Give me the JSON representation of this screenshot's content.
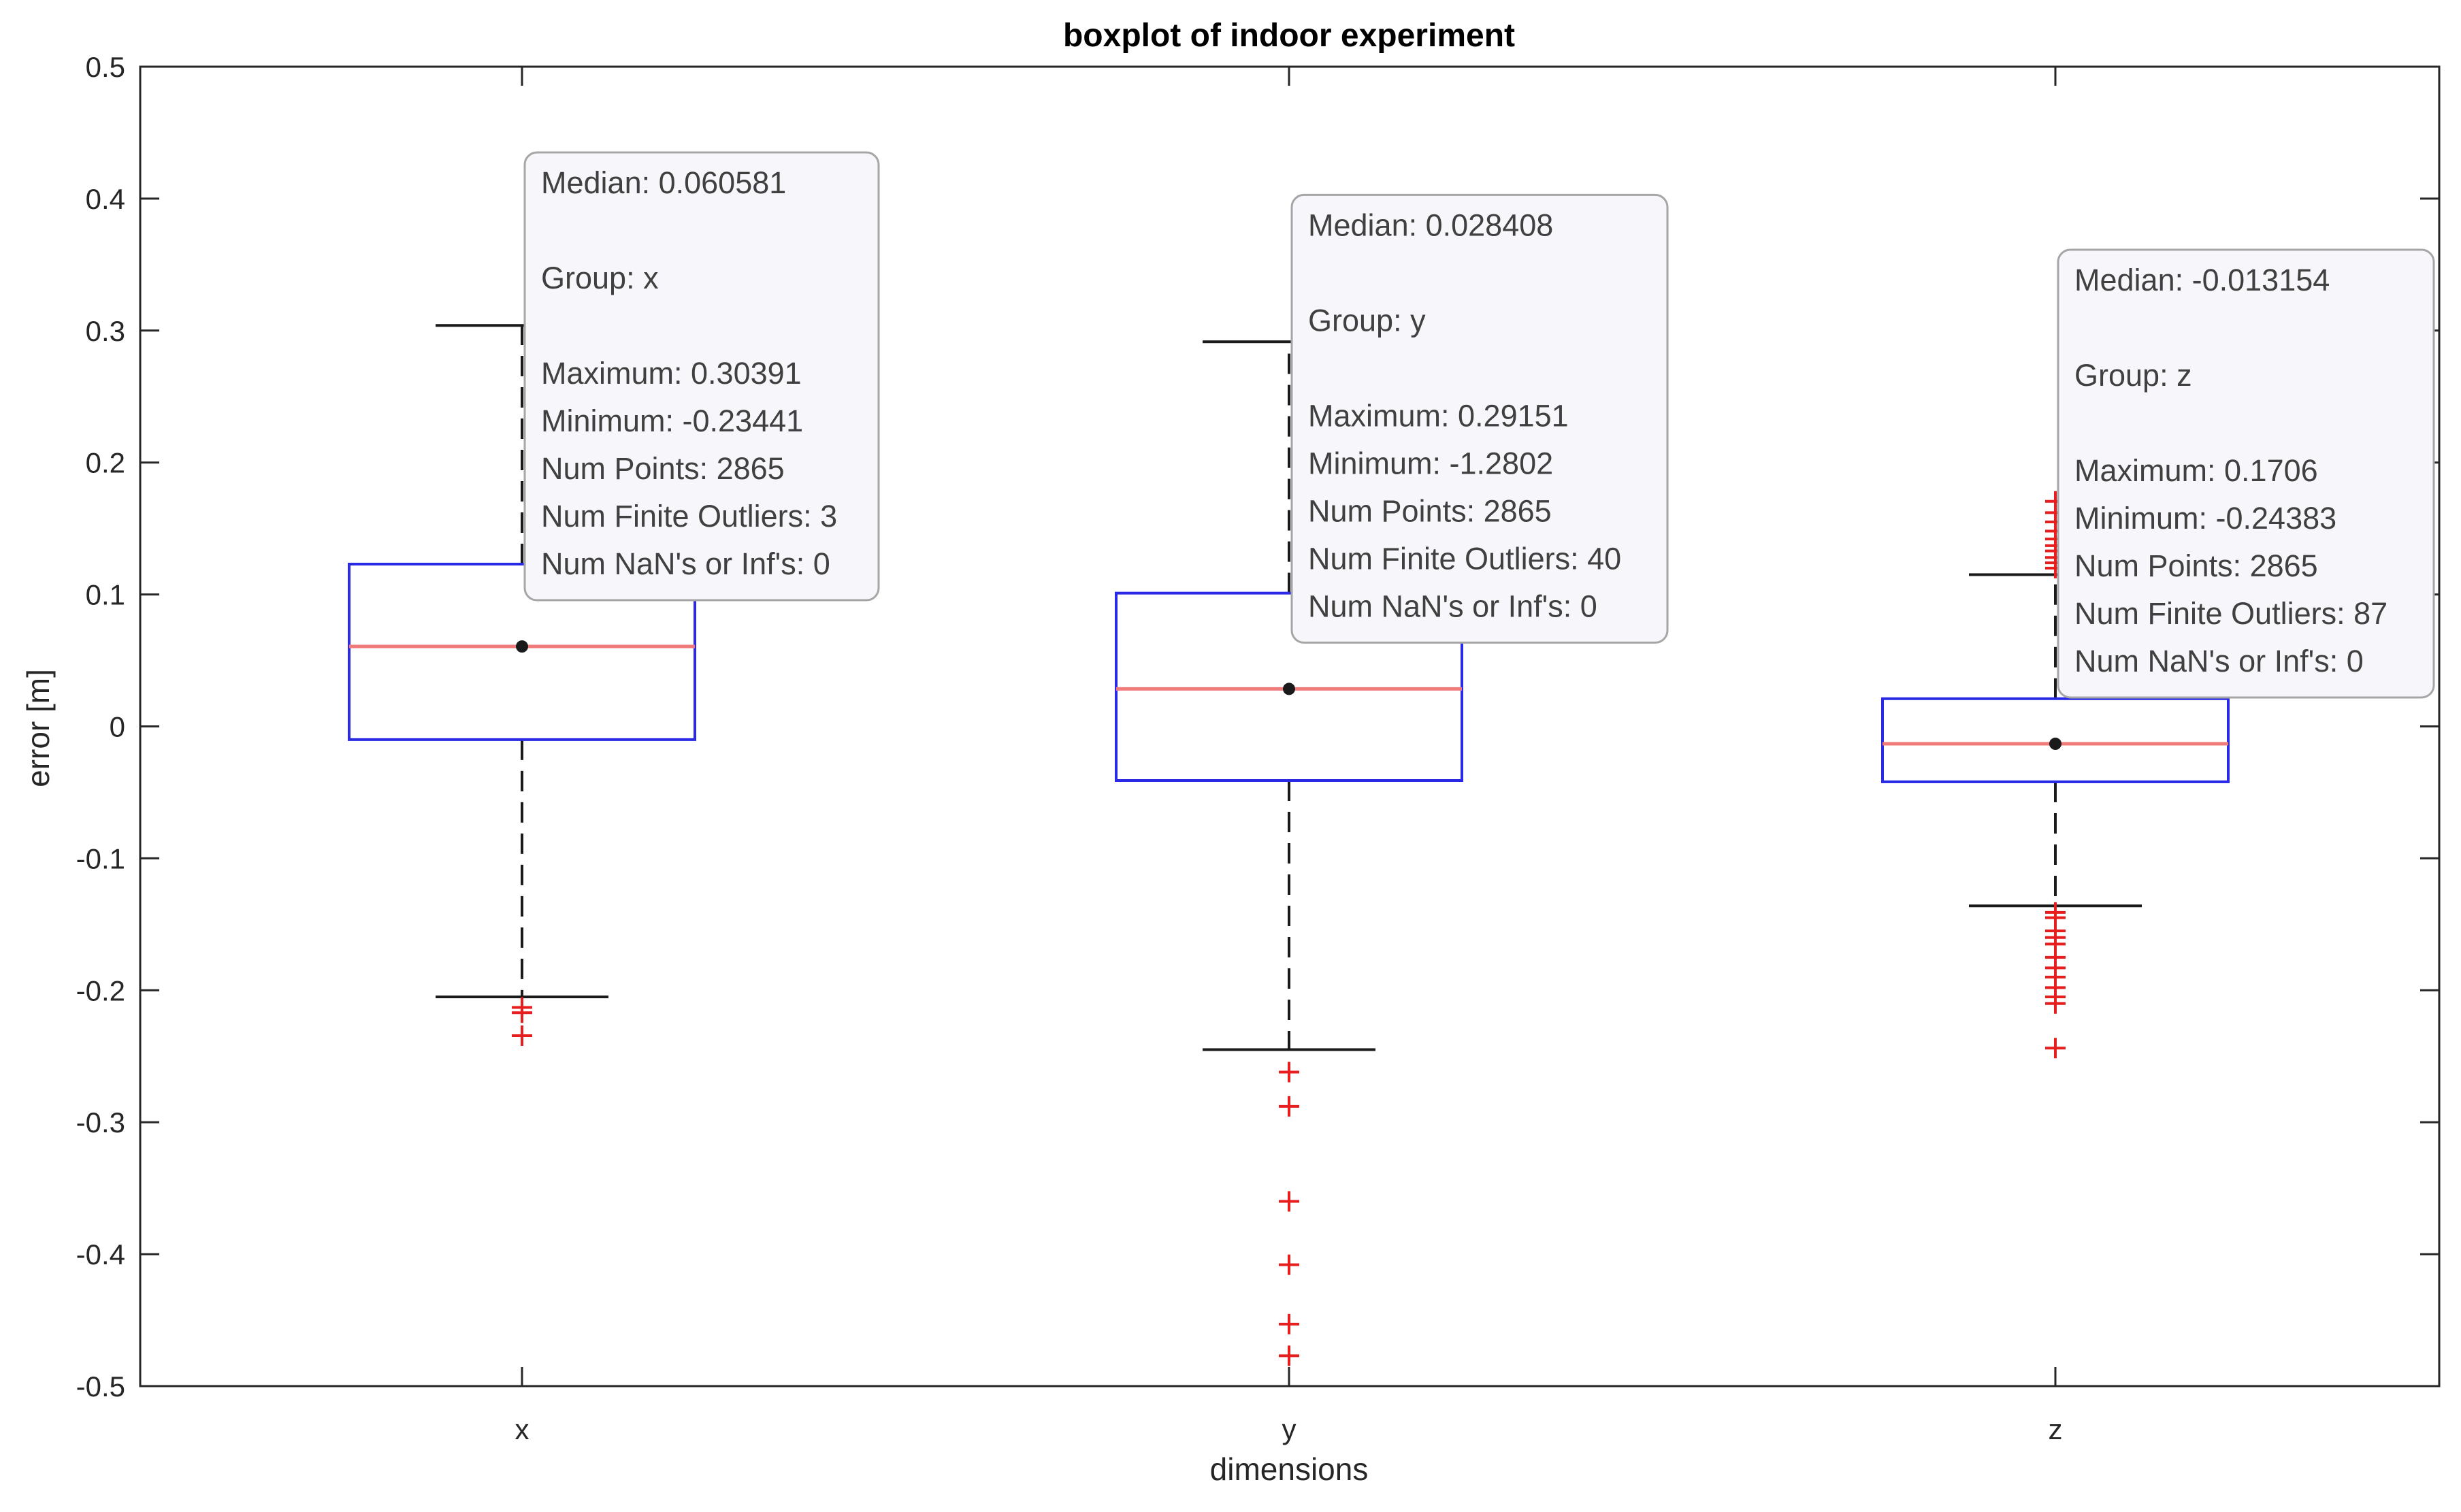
{
  "chart_data": {
    "type": "boxplot",
    "title": "boxplot of indoor experiment",
    "xlabel": "dimensions",
    "ylabel": "error [m]",
    "ylim": [
      -0.5,
      0.5
    ],
    "yticks": [
      0.5,
      0.4,
      0.3,
      0.2,
      0.1,
      0,
      -0.1,
      -0.2,
      -0.3,
      -0.4,
      -0.5
    ],
    "ytick_labels": [
      "0.5",
      "0.4",
      "0.3",
      "0.2",
      "0.1",
      "0",
      "-0.1",
      "-0.2",
      "-0.3",
      "-0.4",
      "-0.5"
    ],
    "categories": [
      "x",
      "y",
      "z"
    ],
    "grid": false,
    "colors": {
      "box": "#2a2ae6",
      "median": "#f07a7a",
      "whisker": "#1a1a1a",
      "outlier": "#e61e1e",
      "tooltip_border": "#a6a6a6",
      "tooltip_fill": "#f7f7fb"
    },
    "groups": [
      {
        "name": "x",
        "median": 0.060581,
        "q1": -0.01,
        "q3": 0.123,
        "whisker_low": -0.205,
        "whisker_high": 0.30391,
        "outliers": [
          -0.213,
          -0.217,
          -0.23441
        ]
      },
      {
        "name": "y",
        "median": 0.028408,
        "q1": -0.041,
        "q3": 0.101,
        "whisker_low": -0.245,
        "whisker_high": 0.29151,
        "outliers": [
          -0.262,
          -0.288,
          -0.36,
          -0.408,
          -0.453,
          -0.477
        ]
      },
      {
        "name": "z",
        "median": -0.013154,
        "q1": -0.042,
        "q3": 0.021,
        "whisker_low": -0.136,
        "whisker_high": 0.115,
        "outliers": [
          0.1706,
          0.162,
          0.155,
          0.148,
          0.142,
          0.137,
          0.133,
          0.128,
          0.124,
          0.12,
          -0.141,
          -0.145,
          -0.155,
          -0.16,
          -0.165,
          -0.175,
          -0.183,
          -0.19,
          -0.198,
          -0.205,
          -0.21,
          -0.24383
        ]
      }
    ],
    "datatips": [
      {
        "group": "x",
        "lines": [
          "Median: 0.060581",
          "",
          "Group: x",
          "",
          "Maximum: 0.30391",
          "Minimum: -0.23441",
          "Num Points: 2865",
          "Num Finite Outliers: 3",
          "Num NaN's or Inf's: 0"
        ]
      },
      {
        "group": "y",
        "lines": [
          "Median: 0.028408",
          "",
          "Group: y",
          "",
          "Maximum: 0.29151",
          "Minimum: -1.2802",
          "Num Points: 2865",
          "Num Finite Outliers: 40",
          "Num NaN's or Inf's: 0"
        ]
      },
      {
        "group": "z",
        "lines": [
          "Median: -0.013154",
          "",
          "Group: z",
          "",
          "Maximum: 0.1706",
          "Minimum: -0.24383",
          "Num Points: 2865",
          "Num Finite Outliers: 87",
          "Num NaN's or Inf's: 0"
        ]
      }
    ]
  }
}
